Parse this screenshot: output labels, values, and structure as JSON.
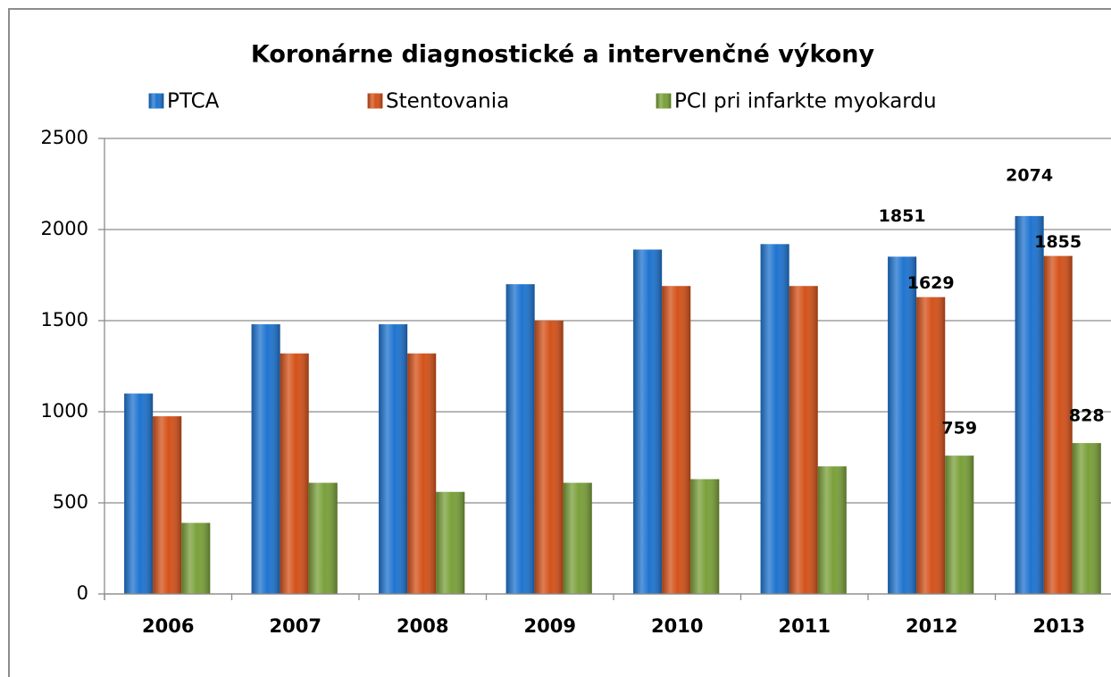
{
  "chart_data": {
    "type": "bar",
    "title": "Koronárne  diagnostické a intervenčné výkony",
    "categories": [
      "2006",
      "2007",
      "2008",
      "2009",
      "2010",
      "2011",
      "2012",
      "2013"
    ],
    "series": [
      {
        "name": "PTCA",
        "color": "#1f74d0",
        "values": [
          1100,
          1480,
          1480,
          1700,
          1890,
          1920,
          1851,
          2074
        ],
        "value_labels": [
          null,
          null,
          null,
          null,
          null,
          null,
          "1851",
          "2074"
        ]
      },
      {
        "name": "Stentovania",
        "color": "#d4521a",
        "values": [
          975,
          1320,
          1320,
          1500,
          1690,
          1690,
          1629,
          1855
        ],
        "value_labels": [
          null,
          null,
          null,
          null,
          null,
          null,
          "1629",
          "1855"
        ]
      },
      {
        "name": "PCI pri infarkte myokardu",
        "color": "#7aa03a",
        "values": [
          390,
          610,
          560,
          610,
          630,
          700,
          759,
          828
        ],
        "value_labels": [
          null,
          null,
          null,
          null,
          null,
          null,
          "759",
          "828"
        ]
      }
    ],
    "ylim": [
      0,
      2500
    ],
    "yticks": [
      0,
      500,
      1000,
      1500,
      2000,
      2500
    ],
    "grid": true,
    "legend": "top"
  }
}
